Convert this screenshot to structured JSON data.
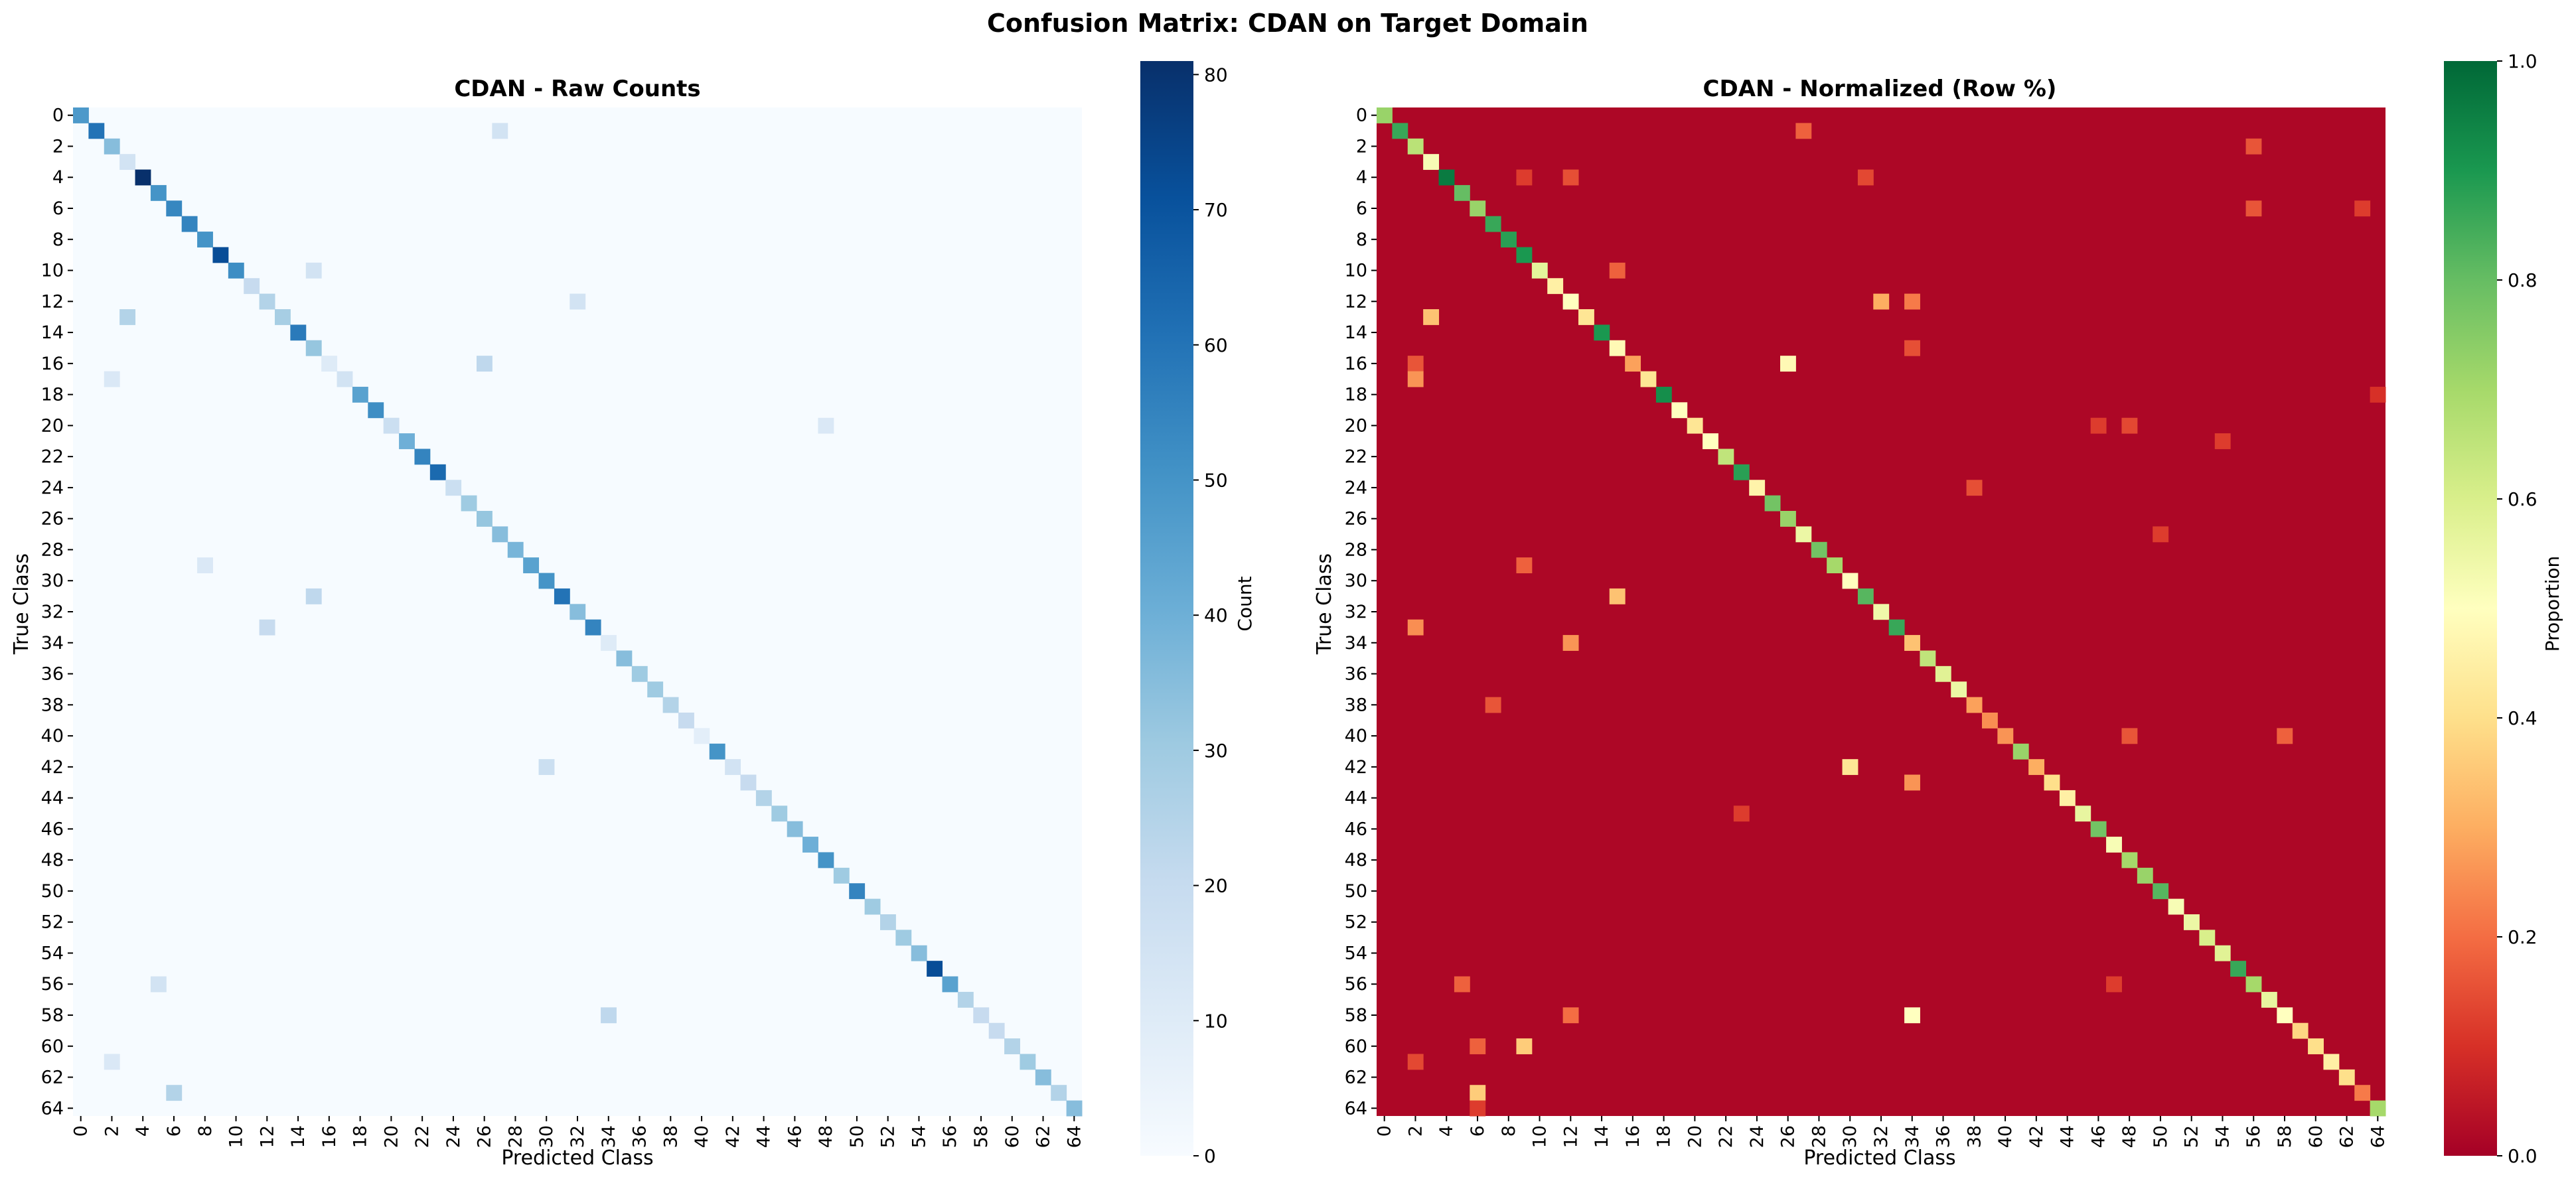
{
  "figure_title": "Confusion Matrix: CDAN on Target Domain",
  "colors": {
    "blues": [
      "#f7fbff",
      "#deebf7",
      "#c6dbef",
      "#9ecae1",
      "#6baed6",
      "#4292c6",
      "#2171b5",
      "#08519c",
      "#08306b"
    ],
    "rdylgn": [
      "#a50026",
      "#d73027",
      "#f46d43",
      "#fdae61",
      "#fee08b",
      "#ffffbf",
      "#d9ef8b",
      "#a6d96a",
      "#66bd63",
      "#1a9850",
      "#006837"
    ]
  },
  "chart_data": [
    {
      "type": "heatmap",
      "title": "CDAN - Raw Counts",
      "xlabel": "Predicted Class",
      "ylabel": "True Class",
      "n_classes": 65,
      "tick_labels": [
        "0",
        "2",
        "4",
        "6",
        "8",
        "10",
        "12",
        "14",
        "16",
        "18",
        "20",
        "22",
        "24",
        "26",
        "28",
        "30",
        "32",
        "34",
        "36",
        "38",
        "40",
        "42",
        "44",
        "46",
        "48",
        "50",
        "52",
        "54",
        "56",
        "58",
        "60",
        "62",
        "64"
      ],
      "colorbar": {
        "label": "Count",
        "range": [
          0,
          81
        ],
        "ticks": [
          "0",
          "10",
          "20",
          "30",
          "40",
          "50",
          "60",
          "70",
          "80"
        ]
      },
      "diagonal_values": [
        48,
        60,
        35,
        15,
        81,
        50,
        54,
        55,
        50,
        72,
        52,
        20,
        25,
        28,
        58,
        32,
        10,
        15,
        45,
        52,
        18,
        40,
        55,
        63,
        18,
        30,
        32,
        35,
        38,
        45,
        50,
        60,
        35,
        55,
        10,
        35,
        30,
        30,
        25,
        20,
        8,
        50,
        15,
        20,
        25,
        30,
        35,
        40,
        50,
        30,
        55,
        30,
        25,
        30,
        35,
        72,
        45,
        25,
        20,
        20,
        25,
        30,
        35,
        25,
        35
      ],
      "off_diagonal_cells": [
        {
          "row": 1,
          "col": 27,
          "value": 15
        },
        {
          "row": 10,
          "col": 15,
          "value": 15
        },
        {
          "row": 13,
          "col": 3,
          "value": 25
        },
        {
          "row": 16,
          "col": 26,
          "value": 22
        },
        {
          "row": 17,
          "col": 2,
          "value": 12
        },
        {
          "row": 31,
          "col": 15,
          "value": 22
        },
        {
          "row": 33,
          "col": 12,
          "value": 20
        },
        {
          "row": 42,
          "col": 30,
          "value": 18
        },
        {
          "row": 56,
          "col": 5,
          "value": 15
        },
        {
          "row": 58,
          "col": 34,
          "value": 22
        },
        {
          "row": 63,
          "col": 6,
          "value": 25
        },
        {
          "row": 20,
          "col": 48,
          "value": 12
        },
        {
          "row": 12,
          "col": 32,
          "value": 15
        },
        {
          "row": 29,
          "col": 8,
          "value": 12
        },
        {
          "row": 61,
          "col": 2,
          "value": 12
        }
      ]
    },
    {
      "type": "heatmap",
      "title": "CDAN - Normalized (Row %)",
      "xlabel": "Predicted Class",
      "ylabel": "True Class",
      "n_classes": 65,
      "tick_labels": [
        "0",
        "2",
        "4",
        "6",
        "8",
        "10",
        "12",
        "14",
        "16",
        "18",
        "20",
        "22",
        "24",
        "26",
        "28",
        "30",
        "32",
        "34",
        "36",
        "38",
        "40",
        "42",
        "44",
        "46",
        "48",
        "50",
        "52",
        "54",
        "56",
        "58",
        "60",
        "62",
        "64"
      ],
      "colorbar": {
        "label": "Proportion",
        "range": [
          0,
          1
        ],
        "ticks": [
          "0.0",
          "0.2",
          "0.4",
          "0.6",
          "0.8",
          "1.0"
        ]
      },
      "diagonal_values": [
        0.72,
        0.86,
        0.66,
        0.52,
        0.96,
        0.8,
        0.72,
        0.86,
        0.88,
        0.9,
        0.57,
        0.45,
        0.5,
        0.42,
        0.9,
        0.48,
        0.28,
        0.42,
        0.92,
        0.5,
        0.42,
        0.5,
        0.65,
        0.88,
        0.46,
        0.78,
        0.72,
        0.55,
        0.78,
        0.7,
        0.5,
        0.82,
        0.54,
        0.86,
        0.34,
        0.65,
        0.58,
        0.55,
        0.28,
        0.25,
        0.26,
        0.72,
        0.3,
        0.4,
        0.45,
        0.56,
        0.78,
        0.52,
        0.7,
        0.72,
        0.82,
        0.52,
        0.55,
        0.6,
        0.58,
        0.86,
        0.7,
        0.56,
        0.5,
        0.38,
        0.4,
        0.45,
        0.4,
        0.22,
        0.7
      ],
      "off_diagonal_cells": [
        {
          "row": 1,
          "col": 27,
          "value": 0.18
        },
        {
          "row": 2,
          "col": 56,
          "value": 0.16
        },
        {
          "row": 4,
          "col": 9,
          "value": 0.12
        },
        {
          "row": 4,
          "col": 12,
          "value": 0.15
        },
        {
          "row": 4,
          "col": 31,
          "value": 0.14
        },
        {
          "row": 6,
          "col": 56,
          "value": 0.16
        },
        {
          "row": 6,
          "col": 63,
          "value": 0.12
        },
        {
          "row": 10,
          "col": 15,
          "value": 0.18
        },
        {
          "row": 12,
          "col": 32,
          "value": 0.3
        },
        {
          "row": 12,
          "col": 34,
          "value": 0.22
        },
        {
          "row": 13,
          "col": 3,
          "value": 0.34
        },
        {
          "row": 15,
          "col": 34,
          "value": 0.15
        },
        {
          "row": 16,
          "col": 26,
          "value": 0.48
        },
        {
          "row": 16,
          "col": 2,
          "value": 0.16
        },
        {
          "row": 17,
          "col": 2,
          "value": 0.26
        },
        {
          "row": 18,
          "col": 64,
          "value": 0.1
        },
        {
          "row": 20,
          "col": 46,
          "value": 0.12
        },
        {
          "row": 20,
          "col": 48,
          "value": 0.14
        },
        {
          "row": 21,
          "col": 54,
          "value": 0.12
        },
        {
          "row": 24,
          "col": 38,
          "value": 0.15
        },
        {
          "row": 27,
          "col": 50,
          "value": 0.12
        },
        {
          "row": 29,
          "col": 9,
          "value": 0.18
        },
        {
          "row": 31,
          "col": 15,
          "value": 0.34
        },
        {
          "row": 33,
          "col": 2,
          "value": 0.25
        },
        {
          "row": 34,
          "col": 12,
          "value": 0.26
        },
        {
          "row": 38,
          "col": 7,
          "value": 0.16
        },
        {
          "row": 40,
          "col": 48,
          "value": 0.16
        },
        {
          "row": 40,
          "col": 58,
          "value": 0.18
        },
        {
          "row": 42,
          "col": 30,
          "value": 0.42
        },
        {
          "row": 43,
          "col": 34,
          "value": 0.26
        },
        {
          "row": 45,
          "col": 23,
          "value": 0.12
        },
        {
          "row": 56,
          "col": 5,
          "value": 0.18
        },
        {
          "row": 56,
          "col": 47,
          "value": 0.12
        },
        {
          "row": 58,
          "col": 34,
          "value": 0.5
        },
        {
          "row": 58,
          "col": 12,
          "value": 0.2
        },
        {
          "row": 60,
          "col": 9,
          "value": 0.36
        },
        {
          "row": 60,
          "col": 6,
          "value": 0.18
        },
        {
          "row": 63,
          "col": 6,
          "value": 0.36
        },
        {
          "row": 61,
          "col": 2,
          "value": 0.14
        },
        {
          "row": 64,
          "col": 6,
          "value": 0.12
        }
      ]
    }
  ]
}
